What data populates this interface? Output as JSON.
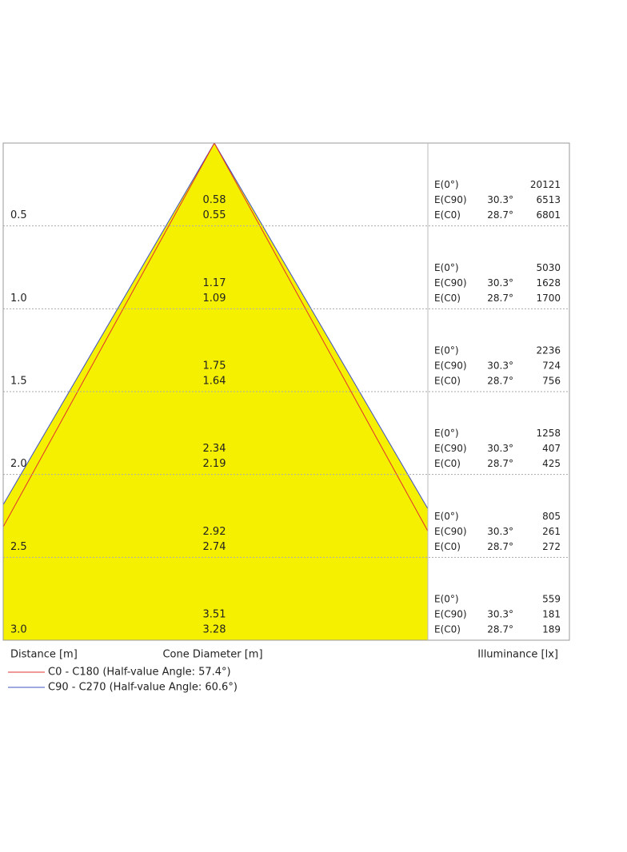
{
  "rows": [
    {
      "distance": "0.5",
      "diameters": [
        "0.58",
        "0.55"
      ],
      "illuminance": [
        {
          "label": "E(0°)",
          "value": "20121"
        },
        {
          "label": "E(C90)",
          "angle": "30.3°",
          "value": "6513"
        },
        {
          "label": "E(C0)",
          "angle": "28.7°",
          "value": "6801"
        }
      ]
    },
    {
      "distance": "1.0",
      "diameters": [
        "1.17",
        "1.09"
      ],
      "illuminance": [
        {
          "label": "E(0°)",
          "value": "5030"
        },
        {
          "label": "E(C90)",
          "angle": "30.3°",
          "value": "1628"
        },
        {
          "label": "E(C0)",
          "angle": "28.7°",
          "value": "1700"
        }
      ]
    },
    {
      "distance": "1.5",
      "diameters": [
        "1.75",
        "1.64"
      ],
      "illuminance": [
        {
          "label": "E(0°)",
          "value": "2236"
        },
        {
          "label": "E(C90)",
          "angle": "30.3°",
          "value": "724"
        },
        {
          "label": "E(C0)",
          "angle": "28.7°",
          "value": "756"
        }
      ]
    },
    {
      "distance": "2.0",
      "diameters": [
        "2.34",
        "2.19"
      ],
      "illuminance": [
        {
          "label": "E(0°)",
          "value": "1258"
        },
        {
          "label": "E(C90)",
          "angle": "30.3°",
          "value": "407"
        },
        {
          "label": "E(C0)",
          "angle": "28.7°",
          "value": "425"
        }
      ]
    },
    {
      "distance": "2.5",
      "diameters": [
        "2.92",
        "2.74"
      ],
      "illuminance": [
        {
          "label": "E(0°)",
          "value": "805"
        },
        {
          "label": "E(C90)",
          "angle": "30.3°",
          "value": "261"
        },
        {
          "label": "E(C0)",
          "angle": "28.7°",
          "value": "272"
        }
      ]
    },
    {
      "distance": "3.0",
      "diameters": [
        "3.51",
        "3.28"
      ],
      "illuminance": [
        {
          "label": "E(0°)",
          "value": "559"
        },
        {
          "label": "E(C90)",
          "angle": "30.3°",
          "value": "181"
        },
        {
          "label": "E(C0)",
          "angle": "28.7°",
          "value": "189"
        }
      ]
    }
  ],
  "axis_labels": {
    "distance": "Distance [m]",
    "diameter": "Cone Diameter [m]",
    "illuminance": "Illuminance [lx]"
  },
  "legend": [
    {
      "name": "C0 - C180 (Half-value Angle: 57.4°)",
      "color": "#e03030"
    },
    {
      "name": "C90 - C270 (Half-value Angle: 60.6°)",
      "color": "#4050c0"
    }
  ]
}
